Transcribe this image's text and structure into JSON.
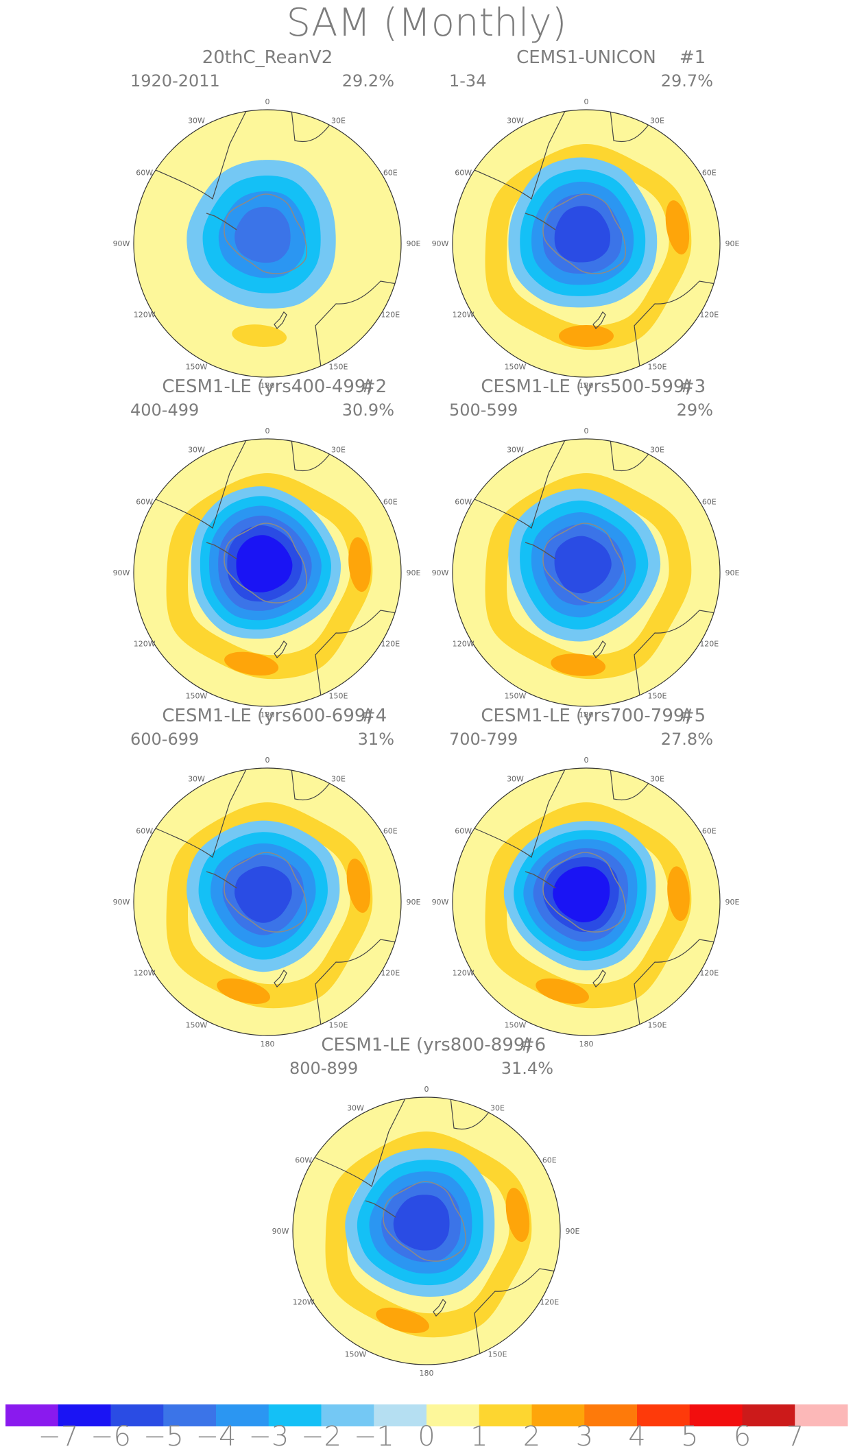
{
  "title": "SAM (Monthly)",
  "lon_labels": [
    "0",
    "30E",
    "60E",
    "90E",
    "120E",
    "150E",
    "180",
    "150W",
    "120W",
    "90W",
    "60W",
    "30W"
  ],
  "panels": [
    {
      "title": "20thC_ReanV2",
      "tag": "",
      "years": "1920-2011",
      "pct": "29.2%",
      "low_level": -4,
      "high_level": 1,
      "high_ring": false,
      "high_spots": [
        {
          "lon": 185,
          "level": 2
        }
      ]
    },
    {
      "title": "CEMS1-UNICON",
      "tag": "#1",
      "years": "1-34",
      "pct": "29.7%",
      "low_level": -5,
      "high_level": 2,
      "high_ring": true,
      "high_spots": [
        {
          "lon": 80,
          "level": 3
        },
        {
          "lon": 180,
          "level": 3
        }
      ]
    },
    {
      "title": "CESM1-LE (yrs400-499)",
      "tag": "#2",
      "years": "400-499",
      "pct": "30.9%",
      "low_level": -6,
      "high_level": 2,
      "high_ring": true,
      "high_spots": [
        {
          "lon": 85,
          "level": 3
        },
        {
          "lon": 190,
          "level": 3
        }
      ]
    },
    {
      "title": "CESM1-LE (yrs500-599)",
      "tag": "#3",
      "years": "500-599",
      "pct": "29%",
      "low_level": -5,
      "high_level": 2,
      "high_ring": true,
      "high_spots": [
        {
          "lon": 185,
          "level": 3
        }
      ]
    },
    {
      "title": "CESM1-LE (yrs600-699)",
      "tag": "#4",
      "years": "600-699",
      "pct": "31%",
      "low_level": -5,
      "high_level": 2,
      "high_ring": true,
      "high_spots": [
        {
          "lon": 80,
          "level": 3
        },
        {
          "lon": 195,
          "level": 3
        }
      ]
    },
    {
      "title": "CESM1-LE (yrs700-799)",
      "tag": "#5",
      "years": "700-799",
      "pct": "27.8%",
      "low_level": -6,
      "high_level": 2,
      "high_ring": true,
      "high_spots": [
        {
          "lon": 85,
          "level": 3
        },
        {
          "lon": 195,
          "level": 3
        }
      ]
    },
    {
      "title": "CESM1-LE (yrs800-899)",
      "tag": "#6",
      "years": "800-899",
      "pct": "31.4%",
      "low_level": -5,
      "high_level": 2,
      "high_ring": true,
      "high_spots": [
        {
          "lon": 80,
          "level": 3
        },
        {
          "lon": 195,
          "level": 3
        }
      ]
    }
  ],
  "colorbar": {
    "labels": [
      "-7",
      "-6",
      "-5",
      "-4",
      "-3",
      "-2",
      "-1",
      "0",
      "1",
      "2",
      "3",
      "4",
      "5",
      "6",
      "7"
    ],
    "colors": [
      "#8a1aee",
      "#1a14f4",
      "#2a4ce4",
      "#3b74e8",
      "#2b96f2",
      "#14c0f6",
      "#74c8f4",
      "#b5dff2",
      "#fdf79a",
      "#fdd630",
      "#fea50a",
      "#fe7a0a",
      "#fe3a0a",
      "#f20e0e",
      "#cc1a1a",
      "#fcb8b8"
    ]
  },
  "colors": {
    "land_outline": "#444444",
    "ocean_base": "#fdf79a"
  }
}
